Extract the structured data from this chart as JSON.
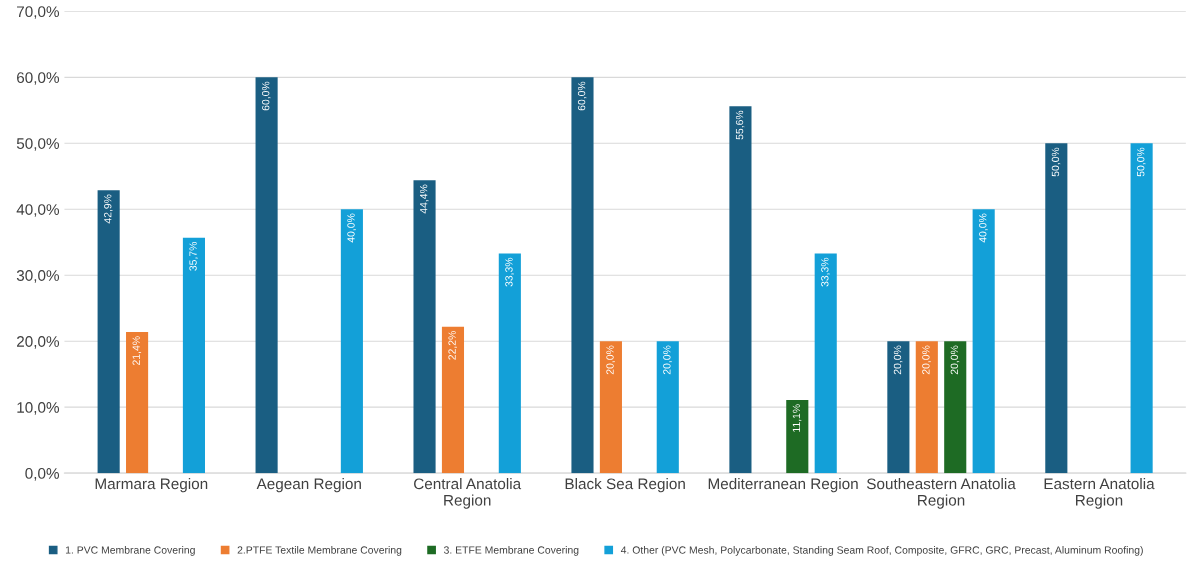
{
  "chart_data": {
    "type": "bar",
    "categories": [
      "Marmara Region",
      "Aegean Region",
      "Central Anatolia Region",
      "Black Sea Region",
      "Mediterranean Region",
      "Southeastern Anatolia Region",
      "Eastern Anatolia Region"
    ],
    "series": [
      {
        "name": "1. PVC Membrane Covering",
        "color": "#1a5e82",
        "values": [
          42.9,
          60.0,
          44.4,
          60.0,
          55.6,
          20.0,
          50.0
        ],
        "value_labels": [
          "42,9%",
          "60,0%",
          "44,4%",
          "60,0%",
          "55,6%",
          "20,0%",
          "50,0%"
        ]
      },
      {
        "name": "2.PTFE Textile Membrane Covering",
        "color": "#ed7d31",
        "values": [
          21.4,
          null,
          22.2,
          20.0,
          null,
          20.0,
          null
        ],
        "value_labels": [
          "21,4%",
          null,
          "22,2%",
          "20,0%",
          null,
          "20,0%",
          null
        ]
      },
      {
        "name": "3. ETFE Membrane Covering",
        "color": "#1e6b24",
        "values": [
          null,
          null,
          null,
          null,
          11.1,
          20.0,
          null
        ],
        "value_labels": [
          null,
          null,
          null,
          null,
          "11,1%",
          "20,0%",
          null
        ]
      },
      {
        "name": "4. Other (PVC Mesh, Polycarbonate, Standing Seam Roof, Composite, GFRC, GRC, Precast, Aluminum Roofing)",
        "color": "#13a0d8",
        "values": [
          35.7,
          40.0,
          33.3,
          20.0,
          33.3,
          40.0,
          50.0
        ],
        "value_labels": [
          "35,7%",
          "40,0%",
          "33,3%",
          "20,0%",
          "33,3%",
          "40,0%",
          "50,0%"
        ]
      }
    ],
    "ylim": [
      0,
      70
    ],
    "yticks": [
      {
        "value": 0,
        "label": "0,0%"
      },
      {
        "value": 10,
        "label": "10,0%"
      },
      {
        "value": 20,
        "label": "20,0%"
      },
      {
        "value": 30,
        "label": "30,0%"
      },
      {
        "value": 40,
        "label": "40,0%"
      },
      {
        "value": 50,
        "label": "50,0%"
      },
      {
        "value": 60,
        "label": "60,0%"
      },
      {
        "value": 70,
        "label": "70,0%"
      }
    ],
    "grid": "y",
    "legend": "bottom"
  }
}
